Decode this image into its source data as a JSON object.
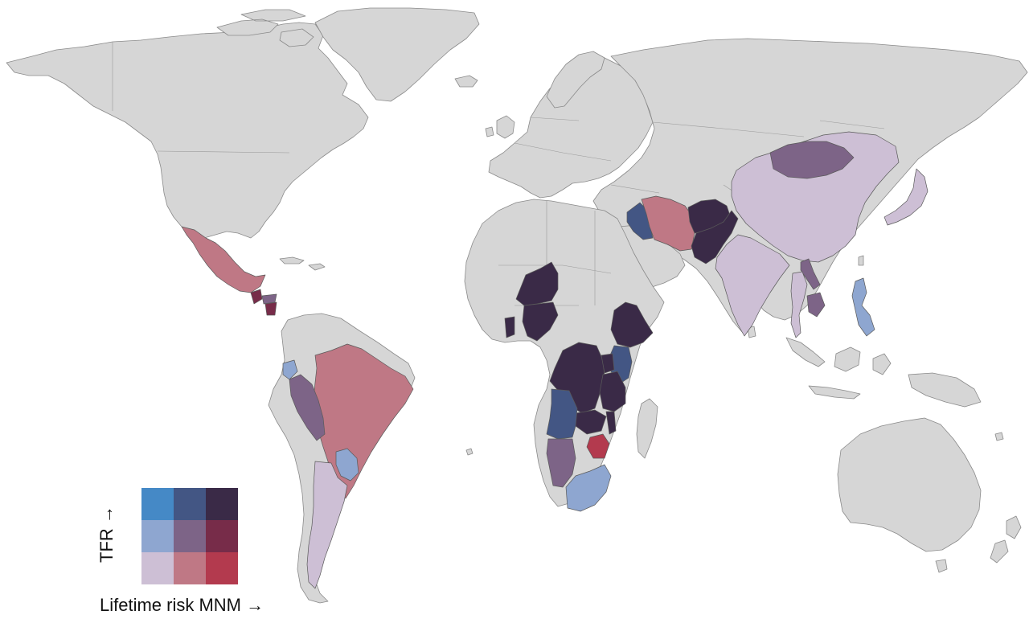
{
  "legend": {
    "y_label": "TFR →",
    "x_label": "Lifetime risk MNM →",
    "grid_colors": [
      [
        "#4589c6",
        "#435684",
        "#3a2a47"
      ],
      [
        "#8ea6d0",
        "#7d6487",
        "#772c49"
      ],
      [
        "#cdbfd5",
        "#bf7885",
        "#b33a4e"
      ]
    ]
  },
  "palette": {
    "no_data": "#d6d6d6",
    "low_tfr_low_risk": "#cdbfd5",
    "low_tfr_mid_risk": "#bf7885",
    "low_tfr_high_risk": "#b33a4e",
    "mid_tfr_low_risk": "#8ea6d0",
    "mid_tfr_mid_risk": "#7d6487",
    "mid_tfr_high_risk": "#772c49",
    "high_tfr_low_risk": "#4589c6",
    "high_tfr_mid_risk": "#435684",
    "high_tfr_high_risk": "#3a2a47"
  },
  "countries": [
    {
      "name": "Mexico",
      "color": "#bf7885"
    },
    {
      "name": "Guatemala",
      "color": "#772c49"
    },
    {
      "name": "Honduras",
      "color": "#7d6487"
    },
    {
      "name": "Nicaragua",
      "color": "#772c49"
    },
    {
      "name": "Brazil",
      "color": "#bf7885"
    },
    {
      "name": "Ecuador",
      "color": "#8ea6d0"
    },
    {
      "name": "Peru",
      "color": "#7d6487"
    },
    {
      "name": "Paraguay",
      "color": "#8ea6d0"
    },
    {
      "name": "Argentina",
      "color": "#cdbfd5"
    },
    {
      "name": "Iraq",
      "color": "#435684"
    },
    {
      "name": "Iran",
      "color": "#bf7885"
    },
    {
      "name": "Afghanistan",
      "color": "#3a2a47"
    },
    {
      "name": "Pakistan",
      "color": "#3a2a47"
    },
    {
      "name": "India",
      "color": "#cdbfd5"
    },
    {
      "name": "China",
      "color": "#cdbfd5"
    },
    {
      "name": "Mongolia",
      "color": "#7d6487"
    },
    {
      "name": "Laos",
      "color": "#7d6487"
    },
    {
      "name": "Thailand",
      "color": "#cdbfd5"
    },
    {
      "name": "Cambodia",
      "color": "#7d6487"
    },
    {
      "name": "Philippines",
      "color": "#8ea6d0"
    },
    {
      "name": "Japan",
      "color": "#cdbfd5"
    },
    {
      "name": "Niger",
      "color": "#3a2a47"
    },
    {
      "name": "Nigeria",
      "color": "#3a2a47"
    },
    {
      "name": "Ghana",
      "color": "#3a2a47"
    },
    {
      "name": "Ethiopia",
      "color": "#3a2a47"
    },
    {
      "name": "Kenya",
      "color": "#435684"
    },
    {
      "name": "DR Congo",
      "color": "#3a2a47"
    },
    {
      "name": "Uganda",
      "color": "#3a2a47"
    },
    {
      "name": "Tanzania",
      "color": "#3a2a47"
    },
    {
      "name": "Zambia",
      "color": "#3a2a47"
    },
    {
      "name": "Malawi",
      "color": "#3a2a47"
    },
    {
      "name": "Angola",
      "color": "#435684"
    },
    {
      "name": "Namibia",
      "color": "#7d6487"
    },
    {
      "name": "Zimbabwe",
      "color": "#b33a4e"
    },
    {
      "name": "South Africa",
      "color": "#8ea6d0"
    }
  ]
}
